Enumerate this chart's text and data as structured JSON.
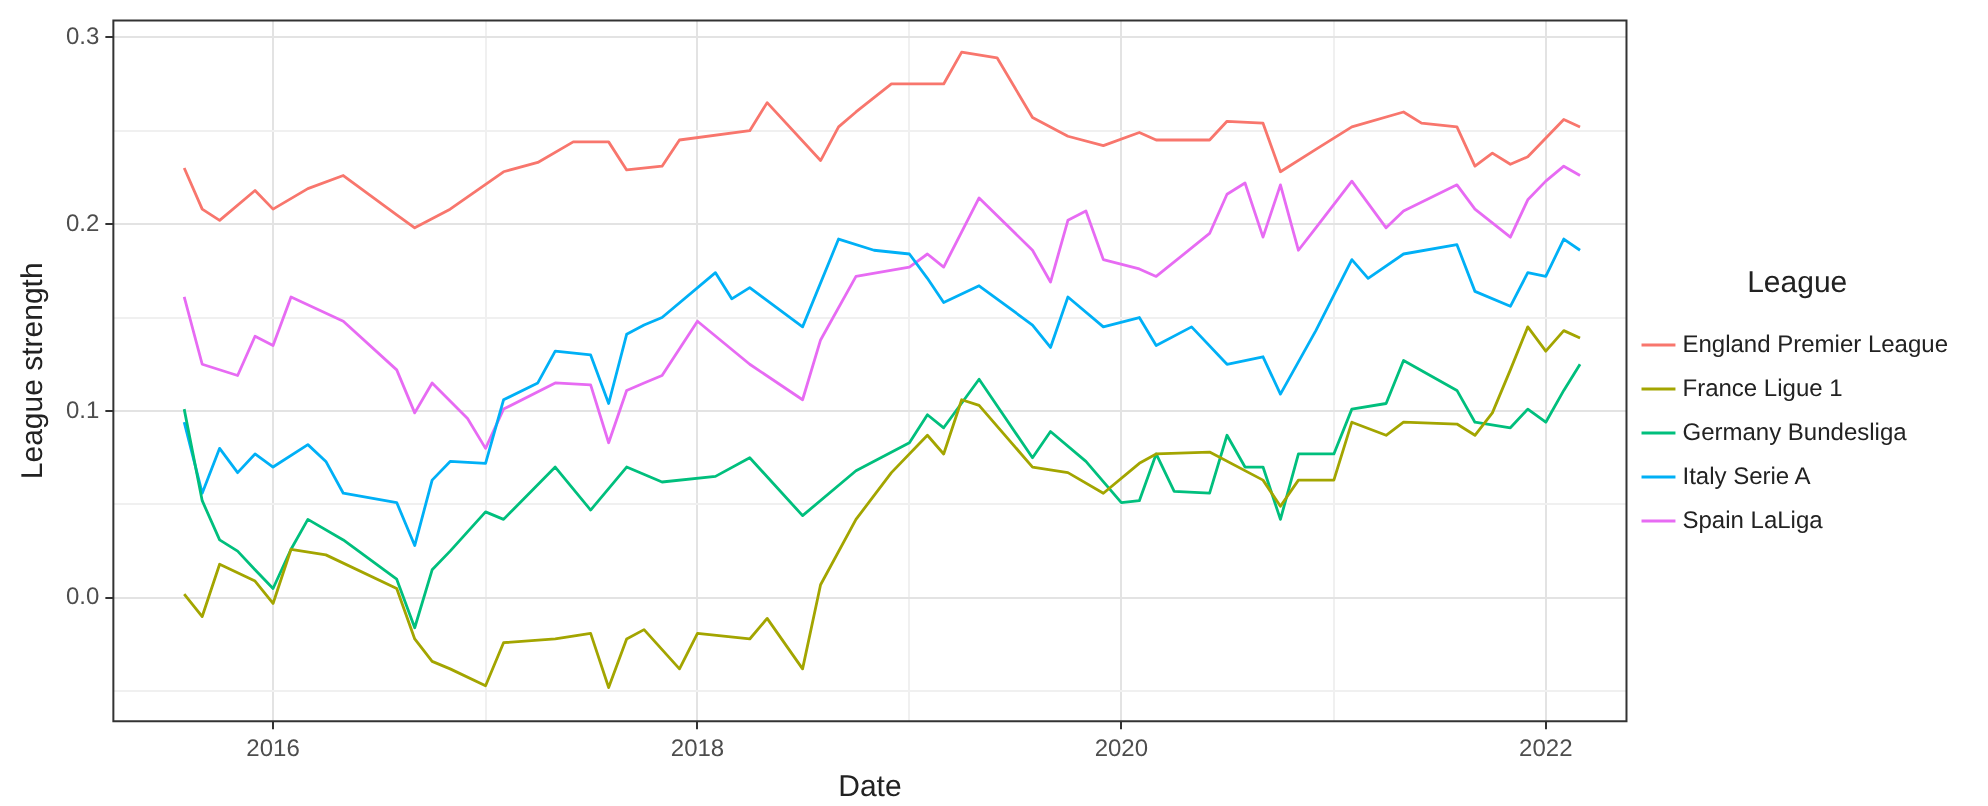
{
  "chart_data": {
    "type": "line",
    "xlabel": "Date",
    "ylabel": "League strength",
    "legend_title": "League",
    "legend": "right",
    "grid": true,
    "marker": "none",
    "line_style": "solid",
    "xlim": [
      "2015-04-01",
      "2022-05-20"
    ],
    "xticks": [
      {
        "value": "2016-01-01",
        "label": "2016"
      },
      {
        "value": "2017-01-01",
        "label": null
      },
      {
        "value": "2018-01-01",
        "label": "2018"
      },
      {
        "value": "2019-01-01",
        "label": null
      },
      {
        "value": "2020-01-01",
        "label": "2020"
      },
      {
        "value": "2021-01-01",
        "label": null
      },
      {
        "value": "2022-01-01",
        "label": "2022"
      }
    ],
    "ylim": [
      -0.066,
      0.309
    ],
    "yticks": [
      {
        "value": -0.05,
        "label": null
      },
      {
        "value": 0,
        "label": "0.0"
      },
      {
        "value": 0.05,
        "label": null
      },
      {
        "value": 0.1,
        "label": "0.1"
      },
      {
        "value": 0.15,
        "label": null
      },
      {
        "value": 0.2,
        "label": "0.2"
      },
      {
        "value": 0.25,
        "label": null
      },
      {
        "value": 0.3,
        "label": "0.3"
      }
    ],
    "series": [
      {
        "name": "England Premier League",
        "color": "#f8766d",
        "x": [
          "2015-08",
          "2015-09",
          "2015-10",
          "2015-12",
          "2016-01",
          "2016-03",
          "2016-05",
          "2016-08",
          "2016-09",
          "2016-11",
          "2017-02",
          "2017-04",
          "2017-06",
          "2017-08",
          "2017-09",
          "2017-11",
          "2017-12",
          "2018-04",
          "2018-05",
          "2018-08",
          "2018-09",
          "2018-10",
          "2018-12",
          "2019-03",
          "2019-04",
          "2019-06",
          "2019-08",
          "2019-10",
          "2019-12",
          "2020-02",
          "2020-03",
          "2020-06",
          "2020-07",
          "2020-09",
          "2020-10",
          "2020-12",
          "2021-02",
          "2021-05",
          "2021-06",
          "2021-08",
          "2021-09",
          "2021-10",
          "2021-11",
          "2021-12",
          "2022-02",
          "2022-03"
        ],
        "values": [
          0.23,
          0.208,
          0.202,
          0.218,
          0.208,
          0.219,
          0.226,
          0.205,
          0.198,
          0.208,
          0.228,
          0.233,
          0.244,
          0.244,
          0.229,
          0.231,
          0.245,
          0.25,
          0.265,
          0.234,
          0.252,
          0.26,
          0.275,
          0.275,
          0.292,
          0.289,
          0.257,
          0.247,
          0.242,
          0.249,
          0.245,
          0.245,
          0.255,
          0.254,
          0.228,
          0.24,
          0.252,
          0.26,
          0.254,
          0.252,
          0.231,
          0.238,
          0.232,
          0.236,
          0.256,
          0.252
        ]
      },
      {
        "name": "France Ligue 1",
        "color": "#a3a500",
        "x": [
          "2015-08",
          "2015-09",
          "2015-10",
          "2015-12",
          "2016-01",
          "2016-02",
          "2016-04",
          "2016-08",
          "2016-09",
          "2016-10",
          "2016-11",
          "2017-01",
          "2017-02",
          "2017-05",
          "2017-07",
          "2017-08",
          "2017-09",
          "2017-10",
          "2017-12",
          "2018-01",
          "2018-04",
          "2018-05",
          "2018-07",
          "2018-08",
          "2018-10",
          "2018-12",
          "2019-02",
          "2019-03",
          "2019-04",
          "2019-05",
          "2019-08",
          "2019-10",
          "2019-12",
          "2020-02",
          "2020-03",
          "2020-06",
          "2020-09",
          "2020-10",
          "2020-11",
          "2021-01",
          "2021-02",
          "2021-04",
          "2021-05",
          "2021-08",
          "2021-09",
          "2021-10",
          "2021-11",
          "2021-12",
          "2022-01",
          "2022-02",
          "2022-03"
        ],
        "values": [
          0.002,
          -0.01,
          0.018,
          0.009,
          -0.003,
          0.026,
          0.023,
          0.005,
          -0.022,
          -0.034,
          -0.038,
          -0.047,
          -0.024,
          -0.022,
          -0.019,
          -0.048,
          -0.022,
          -0.017,
          -0.038,
          -0.019,
          -0.022,
          -0.011,
          -0.038,
          0.007,
          0.042,
          0.067,
          0.087,
          0.077,
          0.106,
          0.103,
          0.07,
          0.067,
          0.056,
          0.072,
          0.077,
          0.078,
          0.063,
          0.049,
          0.063,
          0.063,
          0.094,
          0.087,
          0.094,
          0.093,
          0.087,
          0.099,
          0.122,
          0.145,
          0.132,
          0.143,
          0.139
        ]
      },
      {
        "name": "Germany Bundesliga",
        "color": "#00bf7d",
        "x": [
          "2015-08",
          "2015-09",
          "2015-10",
          "2015-11",
          "2015-12",
          "2016-01",
          "2016-02",
          "2016-03",
          "2016-05",
          "2016-08",
          "2016-09",
          "2016-10",
          "2016-11",
          "2017-01",
          "2017-02",
          "2017-05",
          "2017-07",
          "2017-09",
          "2017-11",
          "2018-02",
          "2018-04",
          "2018-07",
          "2018-10",
          "2019-01",
          "2019-02",
          "2019-03",
          "2019-05",
          "2019-08",
          "2019-09",
          "2019-11",
          "2020-01",
          "2020-02",
          "2020-03",
          "2020-04",
          "2020-06",
          "2020-07",
          "2020-08",
          "2020-09",
          "2020-10",
          "2020-11",
          "2021-01",
          "2021-02",
          "2021-04",
          "2021-05",
          "2021-08",
          "2021-09",
          "2021-11",
          "2021-12",
          "2022-01",
          "2022-02",
          "2022-03"
        ],
        "values": [
          0.101,
          0.052,
          0.031,
          0.025,
          0.015,
          0.005,
          0.026,
          0.042,
          0.031,
          0.01,
          -0.016,
          0.015,
          0.025,
          0.046,
          0.042,
          0.07,
          0.047,
          0.07,
          0.062,
          0.065,
          0.075,
          0.044,
          0.068,
          0.083,
          0.098,
          0.091,
          0.117,
          0.075,
          0.089,
          0.073,
          0.051,
          0.052,
          0.077,
          0.057,
          0.056,
          0.087,
          0.07,
          0.07,
          0.042,
          0.077,
          0.077,
          0.101,
          0.104,
          0.127,
          0.111,
          0.094,
          0.091,
          0.101,
          0.094,
          0.111,
          0.125
        ]
      },
      {
        "name": "Italy Serie A",
        "color": "#00b0f6",
        "x": [
          "2015-08",
          "2015-09",
          "2015-10",
          "2015-11",
          "2015-12",
          "2016-01",
          "2016-03",
          "2016-04",
          "2016-05",
          "2016-08",
          "2016-09",
          "2016-10",
          "2016-11",
          "2017-01",
          "2017-02",
          "2017-04",
          "2017-05",
          "2017-07",
          "2017-08",
          "2017-09",
          "2017-10",
          "2017-11",
          "2018-02",
          "2018-03",
          "2018-04",
          "2018-07",
          "2018-09",
          "2018-11",
          "2019-01",
          "2019-02",
          "2019-03",
          "2019-05",
          "2019-08",
          "2019-09",
          "2019-10",
          "2019-12",
          "2020-02",
          "2020-03",
          "2020-05",
          "2020-07",
          "2020-09",
          "2020-10",
          "2020-12",
          "2021-02",
          "2021-03",
          "2021-05",
          "2021-08",
          "2021-09",
          "2021-11",
          "2021-12",
          "2022-01",
          "2022-02",
          "2022-03"
        ],
        "values": [
          0.094,
          0.056,
          0.08,
          0.067,
          0.077,
          0.07,
          0.082,
          0.073,
          0.056,
          0.051,
          0.028,
          0.063,
          0.073,
          0.072,
          0.106,
          0.115,
          0.132,
          0.13,
          0.104,
          0.141,
          0.146,
          0.15,
          0.174,
          0.16,
          0.166,
          0.145,
          0.192,
          0.186,
          0.184,
          0.171,
          0.158,
          0.167,
          0.146,
          0.134,
          0.161,
          0.145,
          0.15,
          0.135,
          0.145,
          0.125,
          0.129,
          0.109,
          0.143,
          0.181,
          0.171,
          0.184,
          0.189,
          0.164,
          0.156,
          0.174,
          0.172,
          0.192,
          0.186
        ]
      },
      {
        "name": "Spain LaLiga",
        "color": "#e76bf3",
        "x": [
          "2015-08",
          "2015-09",
          "2015-11",
          "2015-12",
          "2016-01",
          "2016-02",
          "2016-05",
          "2016-08",
          "2016-09",
          "2016-10",
          "2016-12",
          "2017-01",
          "2017-02",
          "2017-05",
          "2017-07",
          "2017-08",
          "2017-09",
          "2017-10",
          "2017-11",
          "2018-01",
          "2018-04",
          "2018-07",
          "2018-08",
          "2018-10",
          "2019-01",
          "2019-02",
          "2019-03",
          "2019-05",
          "2019-08",
          "2019-09",
          "2019-10",
          "2019-11",
          "2019-12",
          "2020-02",
          "2020-03",
          "2020-06",
          "2020-07",
          "2020-08",
          "2020-09",
          "2020-10",
          "2020-11",
          "2020-12",
          "2021-02",
          "2021-04",
          "2021-05",
          "2021-08",
          "2021-09",
          "2021-11",
          "2021-12",
          "2022-01",
          "2022-02",
          "2022-03"
        ],
        "values": [
          0.161,
          0.125,
          0.119,
          0.14,
          0.135,
          0.161,
          0.148,
          0.122,
          0.099,
          0.115,
          0.096,
          0.08,
          0.101,
          0.115,
          0.114,
          0.083,
          0.111,
          0.115,
          0.119,
          0.148,
          0.125,
          0.106,
          0.138,
          0.172,
          0.177,
          0.184,
          0.177,
          0.214,
          0.186,
          0.169,
          0.202,
          0.207,
          0.181,
          0.176,
          0.172,
          0.195,
          0.216,
          0.222,
          0.193,
          0.221,
          0.186,
          0.198,
          0.223,
          0.198,
          0.207,
          0.221,
          0.208,
          0.193,
          0.213,
          0.223,
          0.231,
          0.226
        ]
      }
    ]
  }
}
